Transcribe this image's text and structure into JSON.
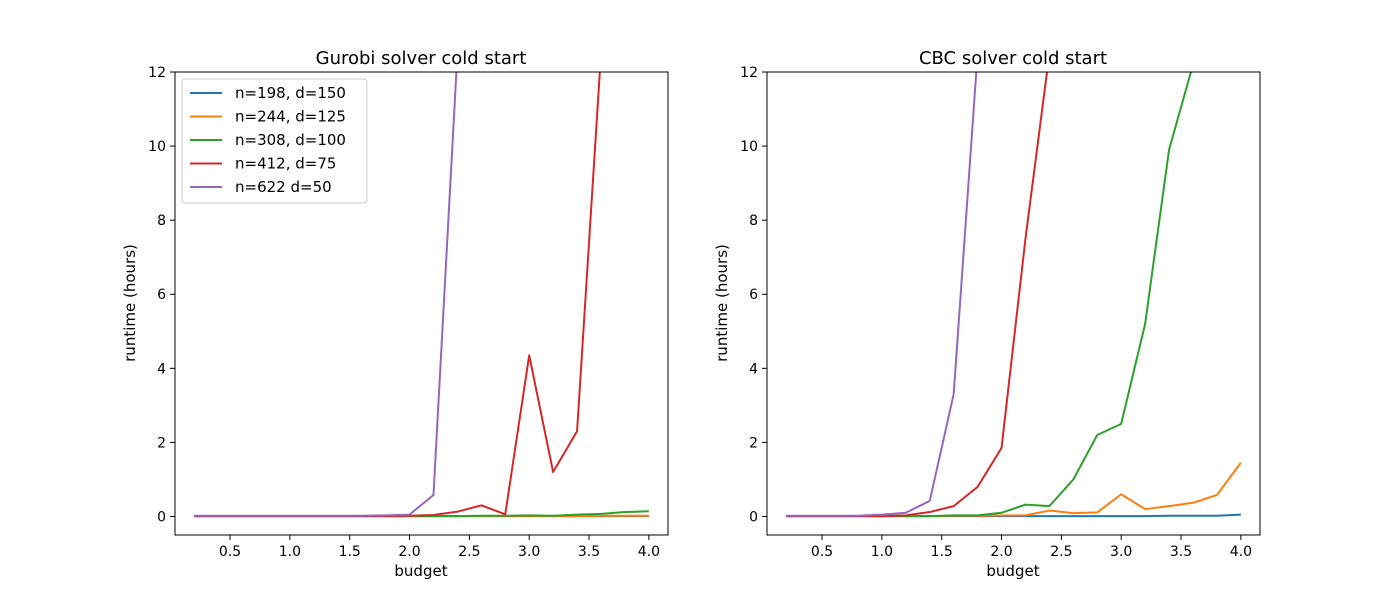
{
  "chart_data": [
    {
      "type": "line",
      "title": "Gurobi solver cold start",
      "xlabel": "budget",
      "ylabel": "runtime (hours)",
      "xlim": [
        0.04,
        4.16
      ],
      "ylim": [
        -0.5,
        12
      ],
      "xticks": [
        0.5,
        1.0,
        1.5,
        2.0,
        2.5,
        3.0,
        3.5,
        4.0
      ],
      "xtick_labels": [
        "0.5",
        "1.0",
        "1.5",
        "2.0",
        "2.5",
        "3.0",
        "3.5",
        "4.0"
      ],
      "yticks": [
        0,
        2,
        4,
        6,
        8,
        10,
        12
      ],
      "ytick_labels": [
        "0",
        "2",
        "4",
        "6",
        "8",
        "10",
        "12"
      ],
      "legend": true,
      "legend_position": "top-left",
      "x": [
        0.2,
        0.4,
        0.6,
        0.8,
        1.0,
        1.2,
        1.4,
        1.6,
        1.8,
        2.0,
        2.2,
        2.4,
        2.6,
        2.8,
        3.0,
        3.2,
        3.4,
        3.6,
        3.8,
        4.0
      ],
      "series": [
        {
          "name": "n=198, d=150",
          "color": "#1f77b4",
          "values": [
            0.01,
            0.01,
            0.01,
            0.01,
            0.01,
            0.01,
            0.01,
            0.01,
            0.01,
            0.01,
            0.01,
            0.01,
            0.01,
            0.01,
            0.01,
            0.01,
            0.01,
            0.01,
            0.01,
            0.01
          ]
        },
        {
          "name": "n=244, d=125",
          "color": "#ff7f0e",
          "values": [
            0.01,
            0.01,
            0.01,
            0.01,
            0.01,
            0.01,
            0.01,
            0.01,
            0.01,
            0.01,
            0.01,
            0.01,
            0.01,
            0.01,
            0.01,
            0.01,
            0.01,
            0.02,
            0.02,
            0.02
          ]
        },
        {
          "name": "n=308, d=100",
          "color": "#2ca02c",
          "values": [
            0.01,
            0.01,
            0.01,
            0.01,
            0.01,
            0.01,
            0.01,
            0.01,
            0.01,
            0.01,
            0.01,
            0.01,
            0.02,
            0.02,
            0.03,
            0.02,
            0.05,
            0.07,
            0.12,
            0.14
          ]
        },
        {
          "name": "n=412, d=75",
          "color": "#d62728",
          "values": [
            0.01,
            0.01,
            0.01,
            0.01,
            0.01,
            0.01,
            0.01,
            0.01,
            0.01,
            0.02,
            0.04,
            0.13,
            0.3,
            0.06,
            4.35,
            1.2,
            2.3,
            12.5,
            null,
            null
          ]
        },
        {
          "name": "n=622 d=50",
          "color": "#9467bd",
          "values": [
            0.02,
            0.02,
            0.02,
            0.02,
            0.02,
            0.02,
            0.02,
            0.02,
            0.03,
            0.05,
            0.58,
            12.5,
            null,
            null,
            null,
            null,
            null,
            null,
            null,
            null
          ]
        }
      ]
    },
    {
      "type": "line",
      "title": "CBC solver cold start",
      "xlabel": "budget",
      "ylabel": "runtime (hours)",
      "xlim": [
        0.04,
        4.16
      ],
      "ylim": [
        -0.5,
        12
      ],
      "xticks": [
        0.5,
        1.0,
        1.5,
        2.0,
        2.5,
        3.0,
        3.5,
        4.0
      ],
      "xtick_labels": [
        "0.5",
        "1.0",
        "1.5",
        "2.0",
        "2.5",
        "3.0",
        "3.5",
        "4.0"
      ],
      "yticks": [
        0,
        2,
        4,
        6,
        8,
        10,
        12
      ],
      "ytick_labels": [
        "0",
        "2",
        "4",
        "6",
        "8",
        "10",
        "12"
      ],
      "legend": false,
      "x": [
        0.2,
        0.4,
        0.6,
        0.8,
        1.0,
        1.2,
        1.4,
        1.6,
        1.8,
        2.0,
        2.2,
        2.4,
        2.6,
        2.8,
        3.0,
        3.2,
        3.4,
        3.6,
        3.8,
        4.0
      ],
      "series": [
        {
          "name": "n=198, d=150",
          "color": "#1f77b4",
          "values": [
            0.01,
            0.01,
            0.01,
            0.01,
            0.01,
            0.01,
            0.01,
            0.01,
            0.01,
            0.01,
            0.01,
            0.01,
            0.01,
            0.01,
            0.01,
            0.01,
            0.02,
            0.02,
            0.02,
            0.05
          ]
        },
        {
          "name": "n=244, d=125",
          "color": "#ff7f0e",
          "values": [
            0.01,
            0.01,
            0.01,
            0.01,
            0.01,
            0.01,
            0.01,
            0.02,
            0.02,
            0.03,
            0.03,
            0.16,
            0.09,
            0.11,
            0.6,
            0.2,
            0.28,
            0.37,
            0.58,
            1.45
          ]
        },
        {
          "name": "n=308, d=100",
          "color": "#2ca02c",
          "values": [
            0.01,
            0.01,
            0.01,
            0.01,
            0.01,
            0.01,
            0.01,
            0.03,
            0.03,
            0.1,
            0.32,
            0.28,
            1.0,
            2.2,
            2.5,
            5.2,
            9.9,
            12.2,
            null,
            null
          ]
        },
        {
          "name": "n=412, d=75",
          "color": "#d62728",
          "values": [
            0.01,
            0.01,
            0.01,
            0.01,
            0.01,
            0.03,
            0.12,
            0.28,
            0.8,
            1.85,
            7.5,
            12.5,
            null,
            null,
            null,
            null,
            null,
            null,
            null,
            null
          ]
        },
        {
          "name": "n=622 d=50",
          "color": "#9467bd",
          "values": [
            0.02,
            0.02,
            0.02,
            0.02,
            0.05,
            0.1,
            0.42,
            3.3,
            12.5,
            null,
            null,
            null,
            null,
            null,
            null,
            null,
            null,
            null,
            null,
            null
          ]
        }
      ]
    }
  ]
}
